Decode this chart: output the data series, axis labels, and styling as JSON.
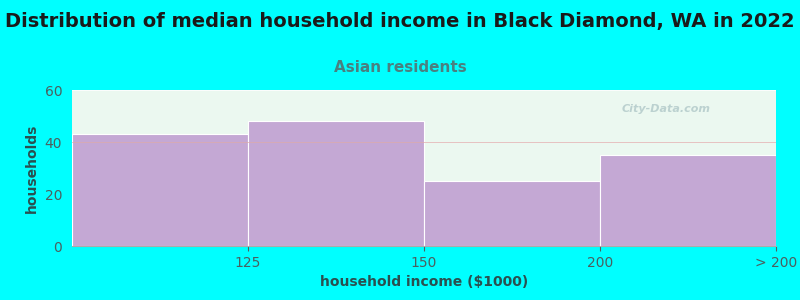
{
  "title": "Distribution of median household income in Black Diamond, WA in 2022",
  "subtitle": "Asian residents",
  "xlabel": "household income ($1000)",
  "ylabel": "households",
  "background_color": "#00FFFF",
  "plot_bg_top_color": "#E8F8F0",
  "plot_bg_bottom_color": "#F0F8F4",
  "bar_color": "#C4A8D4",
  "title_fontsize": 14,
  "subtitle_fontsize": 11,
  "title_color": "#1a1a1a",
  "subtitle_color": "#4a8080",
  "axis_label_fontsize": 10,
  "tick_fontsize": 10,
  "tick_color": "#4a6060",
  "xlabel_color": "#2a5050",
  "ylabel_color": "#2a5050",
  "values": [
    43,
    48,
    25,
    35
  ],
  "ylim": [
    0,
    60
  ],
  "yticks": [
    0,
    20,
    40,
    60
  ],
  "xtick_labels": [
    "125",
    "150",
    "200",
    "> 200"
  ],
  "watermark_text": "City-Data.com"
}
